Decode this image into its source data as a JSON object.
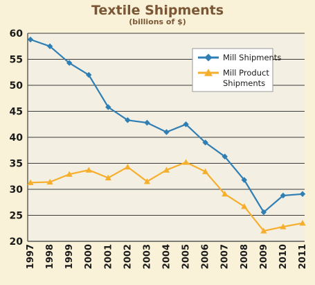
{
  "chart_data": {
    "type": "line",
    "title": "Textile Shipments",
    "subtitle": "(billions of $)",
    "xlabel": "",
    "ylabel": "",
    "ylim": [
      20,
      60
    ],
    "yticks": [
      "20",
      "25",
      "30",
      "35",
      "40",
      "45",
      "50",
      "55",
      "60"
    ],
    "categories": [
      "1997",
      "1998",
      "1999",
      "2000",
      "2001",
      "2002",
      "2003",
      "2004",
      "2005",
      "2006",
      "2007",
      "2008",
      "2009",
      "2010",
      "2011"
    ],
    "grid": "horizontal",
    "legend_position": "top-right",
    "series": [
      {
        "name": "Mill Shipments",
        "legend_lines": [
          "Mill Shipments"
        ],
        "color": "#2f7fb5",
        "marker": "diamond",
        "values": [
          58.8,
          57.5,
          54.3,
          52.0,
          45.8,
          43.3,
          42.8,
          41.0,
          42.5,
          39.0,
          36.3,
          31.8,
          25.6,
          28.8,
          29.1
        ]
      },
      {
        "name": "Mill Product Shipments",
        "legend_lines": [
          "Mill Product",
          "Shipments"
        ],
        "color": "#f6ae2d",
        "marker": "triangle",
        "values": [
          31.3,
          31.4,
          32.9,
          33.7,
          32.2,
          34.3,
          31.5,
          33.7,
          35.2,
          33.4,
          29.1,
          26.7,
          22.0,
          22.8,
          23.5
        ]
      }
    ]
  }
}
